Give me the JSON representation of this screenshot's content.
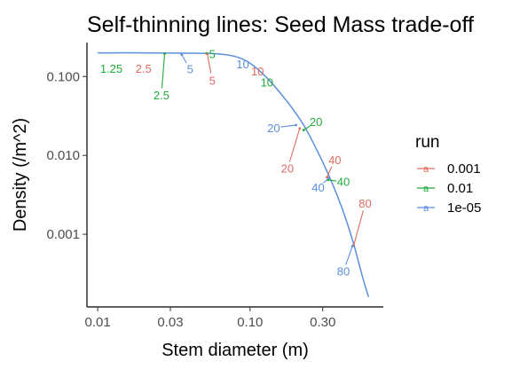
{
  "chart_data": {
    "type": "line",
    "title": "Self-thinning lines: Seed Mass trade-off",
    "xlabel": "Stem diameter (m)",
    "ylabel": "Density (/m^2)",
    "x_scale": "log10",
    "y_scale": "log10",
    "xlim": [
      0.0085,
      0.75
    ],
    "ylim": [
      0.00012,
      0.27
    ],
    "x_ticks": [
      {
        "value": 0.01,
        "label": "0.01"
      },
      {
        "value": 0.03,
        "label": "0.03"
      },
      {
        "value": 0.1,
        "label": "0.10"
      },
      {
        "value": 0.3,
        "label": "0.30"
      }
    ],
    "y_ticks": [
      {
        "value": 0.001,
        "label": "0.001"
      },
      {
        "value": 0.01,
        "label": "0.010"
      },
      {
        "value": 0.1,
        "label": "0.100"
      }
    ],
    "grid": false,
    "legend_position": "right",
    "legend_title": "run",
    "series": [
      {
        "name": "0.001",
        "color": "#e06c63"
      },
      {
        "name": "0.01",
        "color": "#1fac3a"
      },
      {
        "name": "1e-05",
        "color": "#5b8fdb"
      }
    ],
    "line": {
      "color": "#5b8fdb",
      "x": [
        0.01,
        0.02,
        0.04,
        0.06,
        0.08,
        0.1,
        0.13,
        0.17,
        0.22,
        0.27,
        0.33,
        0.4,
        0.47,
        0.55,
        0.6
      ],
      "y": [
        0.2,
        0.2,
        0.198,
        0.195,
        0.18,
        0.148,
        0.095,
        0.052,
        0.026,
        0.0125,
        0.0055,
        0.0022,
        0.00085,
        0.00028,
        0.00016
      ]
    },
    "annotations": [
      {
        "text": "1.25",
        "series": "0.01",
        "label_x": 0.0123,
        "label_y": 0.125,
        "point_x": null,
        "point_y": null
      },
      {
        "text": "2.5",
        "series": "0.001",
        "label_x": 0.02,
        "label_y": 0.125,
        "point_x": null,
        "point_y": null
      },
      {
        "text": "2.5",
        "series": "0.01",
        "label_x": 0.0262,
        "label_y": 0.058,
        "point_x": 0.0275,
        "point_y": 0.195
      },
      {
        "text": "5",
        "series": "1e-05",
        "label_x": 0.0404,
        "label_y": 0.124,
        "point_x": 0.0356,
        "point_y": 0.19
      },
      {
        "text": "5",
        "series": "0.01",
        "label_x": 0.0565,
        "label_y": 0.193,
        "point_x": 0.052,
        "point_y": 0.197
      },
      {
        "text": "5",
        "series": "0.001",
        "label_x": 0.0565,
        "label_y": 0.089,
        "point_x": 0.0525,
        "point_y": 0.193
      },
      {
        "text": "10",
        "series": "1e-05",
        "label_x": 0.0895,
        "label_y": 0.144,
        "point_x": null,
        "point_y": null
      },
      {
        "text": "10",
        "series": "0.001",
        "label_x": 0.112,
        "label_y": 0.116,
        "point_x": null,
        "point_y": null
      },
      {
        "text": "10",
        "series": "0.01",
        "label_x": 0.129,
        "label_y": 0.084,
        "point_x": null,
        "point_y": null
      },
      {
        "text": "20",
        "series": "1e-05",
        "label_x": 0.143,
        "label_y": 0.0223,
        "point_x": 0.2,
        "point_y": 0.0243
      },
      {
        "text": "20",
        "series": "0.01",
        "label_x": 0.271,
        "label_y": 0.0265,
        "point_x": 0.225,
        "point_y": 0.021
      },
      {
        "text": "20",
        "series": "0.001",
        "label_x": 0.176,
        "label_y": 0.0068,
        "point_x": 0.212,
        "point_y": 0.022
      },
      {
        "text": "40",
        "series": "0.001",
        "label_x": 0.36,
        "label_y": 0.0087,
        "point_x": 0.32,
        "point_y": 0.0053
      },
      {
        "text": "40",
        "series": "0.01",
        "label_x": 0.41,
        "label_y": 0.0046,
        "point_x": 0.325,
        "point_y": 0.0049
      },
      {
        "text": "40",
        "series": "1e-05",
        "label_x": 0.28,
        "label_y": 0.0039,
        "point_x": 0.33,
        "point_y": 0.0052
      },
      {
        "text": "80",
        "series": "0.001",
        "label_x": 0.57,
        "label_y": 0.00245,
        "point_x": 0.48,
        "point_y": 0.00073
      },
      {
        "text": "80",
        "series": "1e-05",
        "label_x": 0.41,
        "label_y": 0.00034,
        "point_x": 0.47,
        "point_y": 0.00071
      }
    ]
  }
}
